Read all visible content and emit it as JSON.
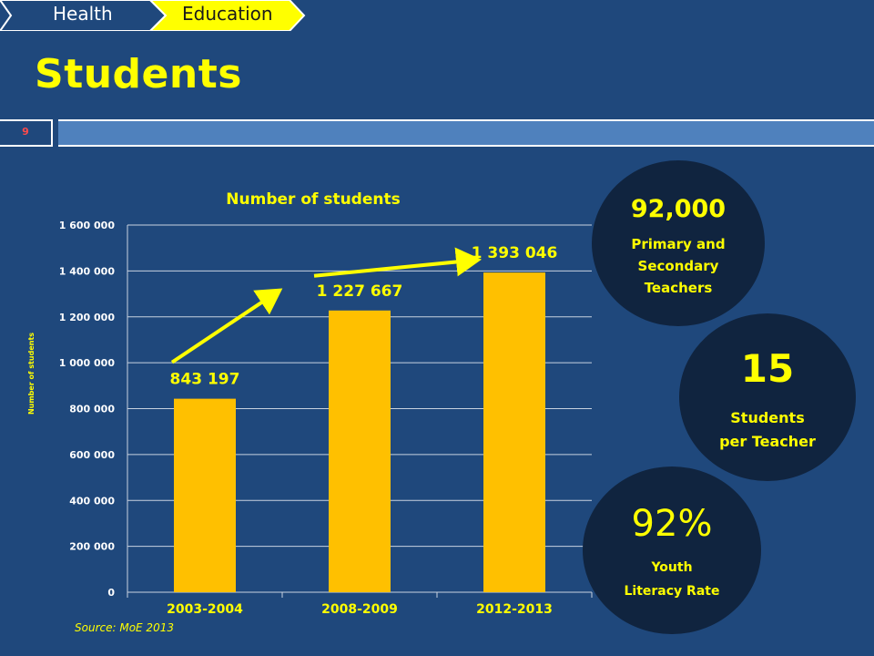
{
  "breadcrumb": {
    "items": [
      {
        "label": "Health"
      },
      {
        "label": "Education"
      }
    ]
  },
  "page_title": "Students",
  "slide_number": "9",
  "colors": {
    "background": "#1f487c",
    "accent": "#ffff00",
    "bar": "#ffc000",
    "header_bar": "#4f81bd",
    "circle": "#10243f"
  },
  "chart_data": {
    "type": "bar",
    "title": "Number of students",
    "ylabel": "Number of students",
    "xlabel": "",
    "categories": [
      "2003-2004",
      "2008-2009",
      "2012-2013"
    ],
    "values": [
      843197,
      1227667,
      1393046
    ],
    "value_labels": [
      "843 197",
      "1 227 667",
      "1 393 046"
    ],
    "ylim": [
      0,
      1600000
    ],
    "y_ticks": [
      0,
      200000,
      400000,
      600000,
      800000,
      1000000,
      1200000,
      1400000,
      1600000
    ],
    "y_tick_labels": [
      "0",
      "200 000",
      "400 000",
      "600 000",
      "800 000",
      "1 000 000",
      "1 200 000",
      "1 400 000",
      "1 600 000"
    ],
    "grid": true,
    "legend": "none",
    "annotations": [
      "growth arrows between bars"
    ]
  },
  "source": "Source: MoE 2013",
  "stats": [
    {
      "value": "92,000",
      "caption": "Primary and\nSecondary\nTeachers"
    },
    {
      "value": "15",
      "caption": "Students\nper Teacher"
    },
    {
      "value": "92%",
      "caption": "Youth\nLiteracy Rate"
    }
  ]
}
